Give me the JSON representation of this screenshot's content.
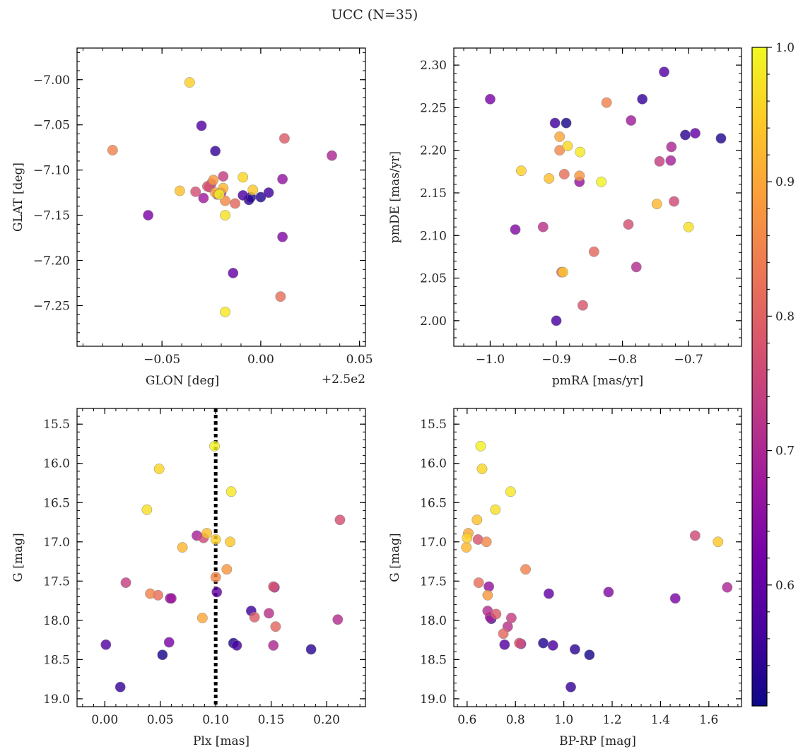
{
  "figure": {
    "suptitle": "UCC (N=35)"
  },
  "colormap": {
    "name": "plasma",
    "range": [
      0.51,
      1.0
    ],
    "ticks": [
      0.6,
      0.7,
      0.8,
      0.9,
      1.0
    ],
    "tick_labels": [
      "0.6",
      "0.7",
      "0.8",
      "0.9",
      "1.0"
    ],
    "stops": [
      "#0d0887",
      "#46039f",
      "#7201a8",
      "#9c179e",
      "#bd3786",
      "#d8576b",
      "#ed7953",
      "#fb9f3a",
      "#fdca26",
      "#f0f921"
    ]
  },
  "stars_p": [
    0.58,
    0.95,
    0.85,
    0.63,
    0.93,
    0.77,
    0.55,
    0.72,
    0.97,
    0.74,
    0.9,
    0.88,
    0.68,
    0.96,
    0.99,
    0.52,
    0.56,
    0.64,
    0.7,
    0.79,
    0.82,
    0.66,
    0.6,
    0.98,
    0.78,
    0.54,
    0.92,
    0.76,
    0.69,
    0.57,
    0.86,
    0.81,
    0.53,
    0.71,
    0.94
  ],
  "chart_data": [
    {
      "type": "scatter",
      "panel": "glon-glat",
      "xlabel": "GLON [deg]",
      "ylabel": "GLAT [deg]",
      "xlim": [
        -0.093,
        0.053
      ],
      "ylim": [
        -7.295,
        -6.965
      ],
      "x_offset": 250,
      "x_offset_label": "+2.5e2",
      "xticks": [
        -0.05,
        0.0,
        0.05
      ],
      "xtick_labels": [
        "−0.05",
        "0.00",
        "0.05"
      ],
      "yticks": [
        -7.25,
        -7.2,
        -7.15,
        -7.1,
        -7.05,
        -7.0
      ],
      "ytick_labels": [
        "−7.25",
        "−7.20",
        "−7.15",
        "−7.10",
        "−7.05",
        "−7.00"
      ],
      "x": [
        -0.03,
        -0.036,
        -0.075,
        -0.057,
        -0.041,
        -0.033,
        -0.023,
        -0.026,
        -0.018,
        -0.019,
        -0.023,
        -0.024,
        -0.029,
        -0.009,
        -0.021,
        -0.005,
        0.004,
        0.011,
        0.036,
        0.012,
        0.01,
        0.011,
        -0.014,
        -0.018,
        -0.027,
        -0.006,
        -0.019,
        -0.025,
        -0.022,
        -0.009,
        -0.018,
        -0.013,
        0.0,
        -0.02,
        -0.004
      ],
      "y": [
        -7.051,
        -7.003,
        -7.078,
        -7.15,
        -7.123,
        -7.124,
        -7.079,
        -7.119,
        -7.15,
        -7.107,
        -7.125,
        -7.111,
        -7.131,
        -7.108,
        -7.127,
        -7.13,
        -7.125,
        -7.174,
        -7.084,
        -7.065,
        -7.24,
        -7.11,
        -7.214,
        -7.257,
        -7.118,
        -7.133,
        -7.12,
        -7.115,
        -7.127,
        -7.128,
        -7.134,
        -7.137,
        -7.13,
        -7.125,
        -7.122
      ]
    },
    {
      "type": "scatter",
      "panel": "pmra-pmde",
      "xlabel": "pmRA [mas/yr]",
      "ylabel": "pmDE [mas/yr]",
      "xlim": [
        -1.055,
        -0.62
      ],
      "ylim": [
        1.97,
        2.32
      ],
      "xticks": [
        -1.0,
        -0.9,
        -0.8,
        -0.7
      ],
      "xtick_labels": [
        "−1.0",
        "−0.9",
        "−0.8",
        "−0.7"
      ],
      "yticks": [
        2.0,
        2.05,
        2.1,
        2.15,
        2.2,
        2.25,
        2.3
      ],
      "ytick_labels": [
        "2.00",
        "2.05",
        "2.10",
        "2.15",
        "2.20",
        "2.25",
        "2.30"
      ],
      "x": [
        -0.737,
        -0.953,
        -0.824,
        -1.0,
        -0.911,
        -0.791,
        -0.77,
        -0.92,
        -0.7,
        -0.744,
        -0.895,
        -0.865,
        -0.787,
        -0.883,
        -0.832,
        -0.885,
        -0.902,
        -0.962,
        -0.726,
        -0.892,
        -0.888,
        -0.865,
        -0.69,
        -0.864,
        -0.86,
        -0.705,
        -0.748,
        -0.722,
        -0.727,
        -0.9,
        -0.895,
        -0.843,
        -0.651,
        -0.779,
        -0.89
      ],
      "y": [
        2.292,
        2.176,
        2.256,
        2.26,
        2.167,
        2.113,
        2.26,
        2.11,
        2.11,
        2.187,
        2.216,
        2.17,
        2.235,
        2.205,
        2.163,
        2.232,
        2.232,
        2.107,
        2.204,
        2.057,
        2.172,
        2.163,
        2.22,
        2.198,
        2.018,
        2.218,
        2.137,
        2.14,
        2.188,
        2.0,
        2.2,
        2.081,
        2.214,
        2.063,
        2.057
      ]
    },
    {
      "type": "scatter",
      "panel": "plx-g",
      "xlabel": "Plx [mas]",
      "ylabel": "G [mag]",
      "xlim": [
        -0.025,
        0.235
      ],
      "ylim": [
        19.1,
        15.3
      ],
      "y_inverted": true,
      "vline_x": 0.1,
      "xticks": [
        0.0,
        0.05,
        0.1,
        0.15,
        0.2
      ],
      "xtick_labels": [
        "0.00",
        "0.05",
        "0.10",
        "0.15",
        "0.20"
      ],
      "yticks": [
        15.5,
        16.0,
        16.5,
        17.0,
        17.5,
        18.0,
        18.5,
        19.0
      ],
      "ytick_labels": [
        "15.5",
        "16.0",
        "16.5",
        "17.0",
        "17.5",
        "18.0",
        "18.5",
        "19.0"
      ],
      "x": [
        0.001,
        0.1,
        0.041,
        0.058,
        0.092,
        0.212,
        0.014,
        0.148,
        0.038,
        0.019,
        0.088,
        0.11,
        0.06,
        0.049,
        0.099,
        0.052,
        0.132,
        0.059,
        0.152,
        0.135,
        0.048,
        0.153,
        0.101,
        0.114,
        0.152,
        0.186,
        0.07,
        0.089,
        0.083,
        0.119,
        0.1,
        0.154,
        0.116,
        0.21,
        0.113
      ],
      "y": [
        18.31,
        16.97,
        17.66,
        18.28,
        16.89,
        16.72,
        18.85,
        17.91,
        16.59,
        17.52,
        17.97,
        17.35,
        17.72,
        16.07,
        15.78,
        18.44,
        17.88,
        17.72,
        18.32,
        17.96,
        17.68,
        17.58,
        17.64,
        16.36,
        17.57,
        18.37,
        17.07,
        16.95,
        16.92,
        18.32,
        17.45,
        18.08,
        18.29,
        17.99,
        17.0
      ]
    },
    {
      "type": "scatter",
      "panel": "bprp-g",
      "xlabel": "BP-RP [mag]",
      "ylabel": "G [mag]",
      "xlim": [
        0.545,
        1.735
      ],
      "ylim": [
        19.1,
        15.3
      ],
      "y_inverted": true,
      "xticks": [
        0.6,
        0.8,
        1.0,
        1.2,
        1.4,
        1.6
      ],
      "xtick_labels": [
        "0.6",
        "0.8",
        "1.0",
        "1.2",
        "1.4",
        "1.6"
      ],
      "yticks": [
        15.5,
        16.0,
        16.5,
        17.0,
        17.5,
        18.0,
        18.5,
        19.0
      ],
      "ytick_labels": [
        "15.5",
        "16.0",
        "16.5",
        "17.0",
        "17.5",
        "18.0",
        "18.5",
        "19.0"
      ],
      "x": [
        0.755,
        0.6,
        0.842,
        1.461,
        0.641,
        0.816,
        1.029,
        0.768,
        0.717,
        0.783,
        0.605,
        0.685,
        0.823,
        0.662,
        0.656,
        1.106,
        0.7,
        1.185,
        1.676,
        0.72,
        0.648,
        0.69,
        0.938,
        0.78,
        0.645,
        1.046,
        0.597,
        1.543,
        0.695,
        0.955,
        0.68,
        0.75,
        0.915,
        0.685,
        1.638
      ],
      "y": [
        18.31,
        16.95,
        17.35,
        17.72,
        16.72,
        18.29,
        18.85,
        18.08,
        16.59,
        17.97,
        16.89,
        17.68,
        18.3,
        16.07,
        15.78,
        18.44,
        17.98,
        17.64,
        17.58,
        17.92,
        17.52,
        17.57,
        17.66,
        16.36,
        16.97,
        18.37,
        17.07,
        16.92,
        17.96,
        18.32,
        17.0,
        18.17,
        18.29,
        17.88,
        17.0
      ]
    }
  ]
}
